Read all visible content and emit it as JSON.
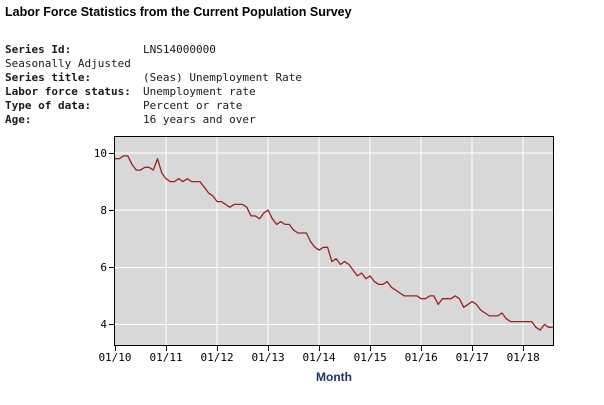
{
  "page": {
    "title": "Labor Force Statistics from the Current Population Survey"
  },
  "series_info": {
    "rows": [
      {
        "label": "Series Id:",
        "value": "LNS14000000"
      },
      {
        "label": "Seasonally Adjusted",
        "value": ""
      },
      {
        "label": "Series title:",
        "value": "(Seas) Unemployment Rate"
      },
      {
        "label": "Labor force status:",
        "value": "Unemployment rate"
      },
      {
        "label": "Type of data:",
        "value": "Percent or rate"
      },
      {
        "label": "Age:",
        "value": "16 years and over"
      }
    ]
  },
  "chart_data": {
    "type": "line",
    "xlabel": "Month",
    "ylabel": "",
    "x_tick_labels": [
      "01/10",
      "01/11",
      "01/12",
      "01/13",
      "01/14",
      "01/15",
      "01/16",
      "01/17",
      "01/18"
    ],
    "x_tick_positions": [
      0,
      12,
      24,
      36,
      48,
      60,
      72,
      84,
      96
    ],
    "x_range_months": 103,
    "y_ticks": [
      10,
      8,
      6,
      4
    ],
    "ylim": [
      3.28,
      10.56
    ],
    "grid": true,
    "grid_color": "#ffffff",
    "plot_bg": "#d8d8d8",
    "frame_color": "#000000",
    "xlabel_color": "#17365c",
    "series": [
      {
        "name": "(Seas) Unemployment Rate",
        "color": "#992222",
        "start": "2010-01",
        "end": "2018-08",
        "values": [
          9.8,
          9.8,
          9.9,
          9.9,
          9.6,
          9.4,
          9.4,
          9.5,
          9.5,
          9.4,
          9.8,
          9.3,
          9.1,
          9.0,
          9.0,
          9.1,
          9.0,
          9.1,
          9.0,
          9.0,
          9.0,
          8.8,
          8.6,
          8.5,
          8.3,
          8.3,
          8.2,
          8.1,
          8.2,
          8.2,
          8.2,
          8.1,
          7.8,
          7.8,
          7.7,
          7.9,
          8.0,
          7.7,
          7.5,
          7.6,
          7.5,
          7.5,
          7.3,
          7.2,
          7.2,
          7.2,
          6.9,
          6.7,
          6.6,
          6.7,
          6.7,
          6.2,
          6.3,
          6.1,
          6.2,
          6.1,
          5.9,
          5.7,
          5.8,
          5.6,
          5.7,
          5.5,
          5.4,
          5.4,
          5.5,
          5.3,
          5.2,
          5.1,
          5.0,
          5.0,
          5.0,
          5.0,
          4.9,
          4.9,
          5.0,
          5.0,
          4.7,
          4.9,
          4.9,
          4.9,
          5.0,
          4.9,
          4.6,
          4.7,
          4.8,
          4.7,
          4.5,
          4.4,
          4.3,
          4.3,
          4.3,
          4.4,
          4.2,
          4.1,
          4.1,
          4.1,
          4.1,
          4.1,
          4.1,
          3.9,
          3.8,
          4.0,
          3.9,
          3.9
        ]
      }
    ]
  }
}
